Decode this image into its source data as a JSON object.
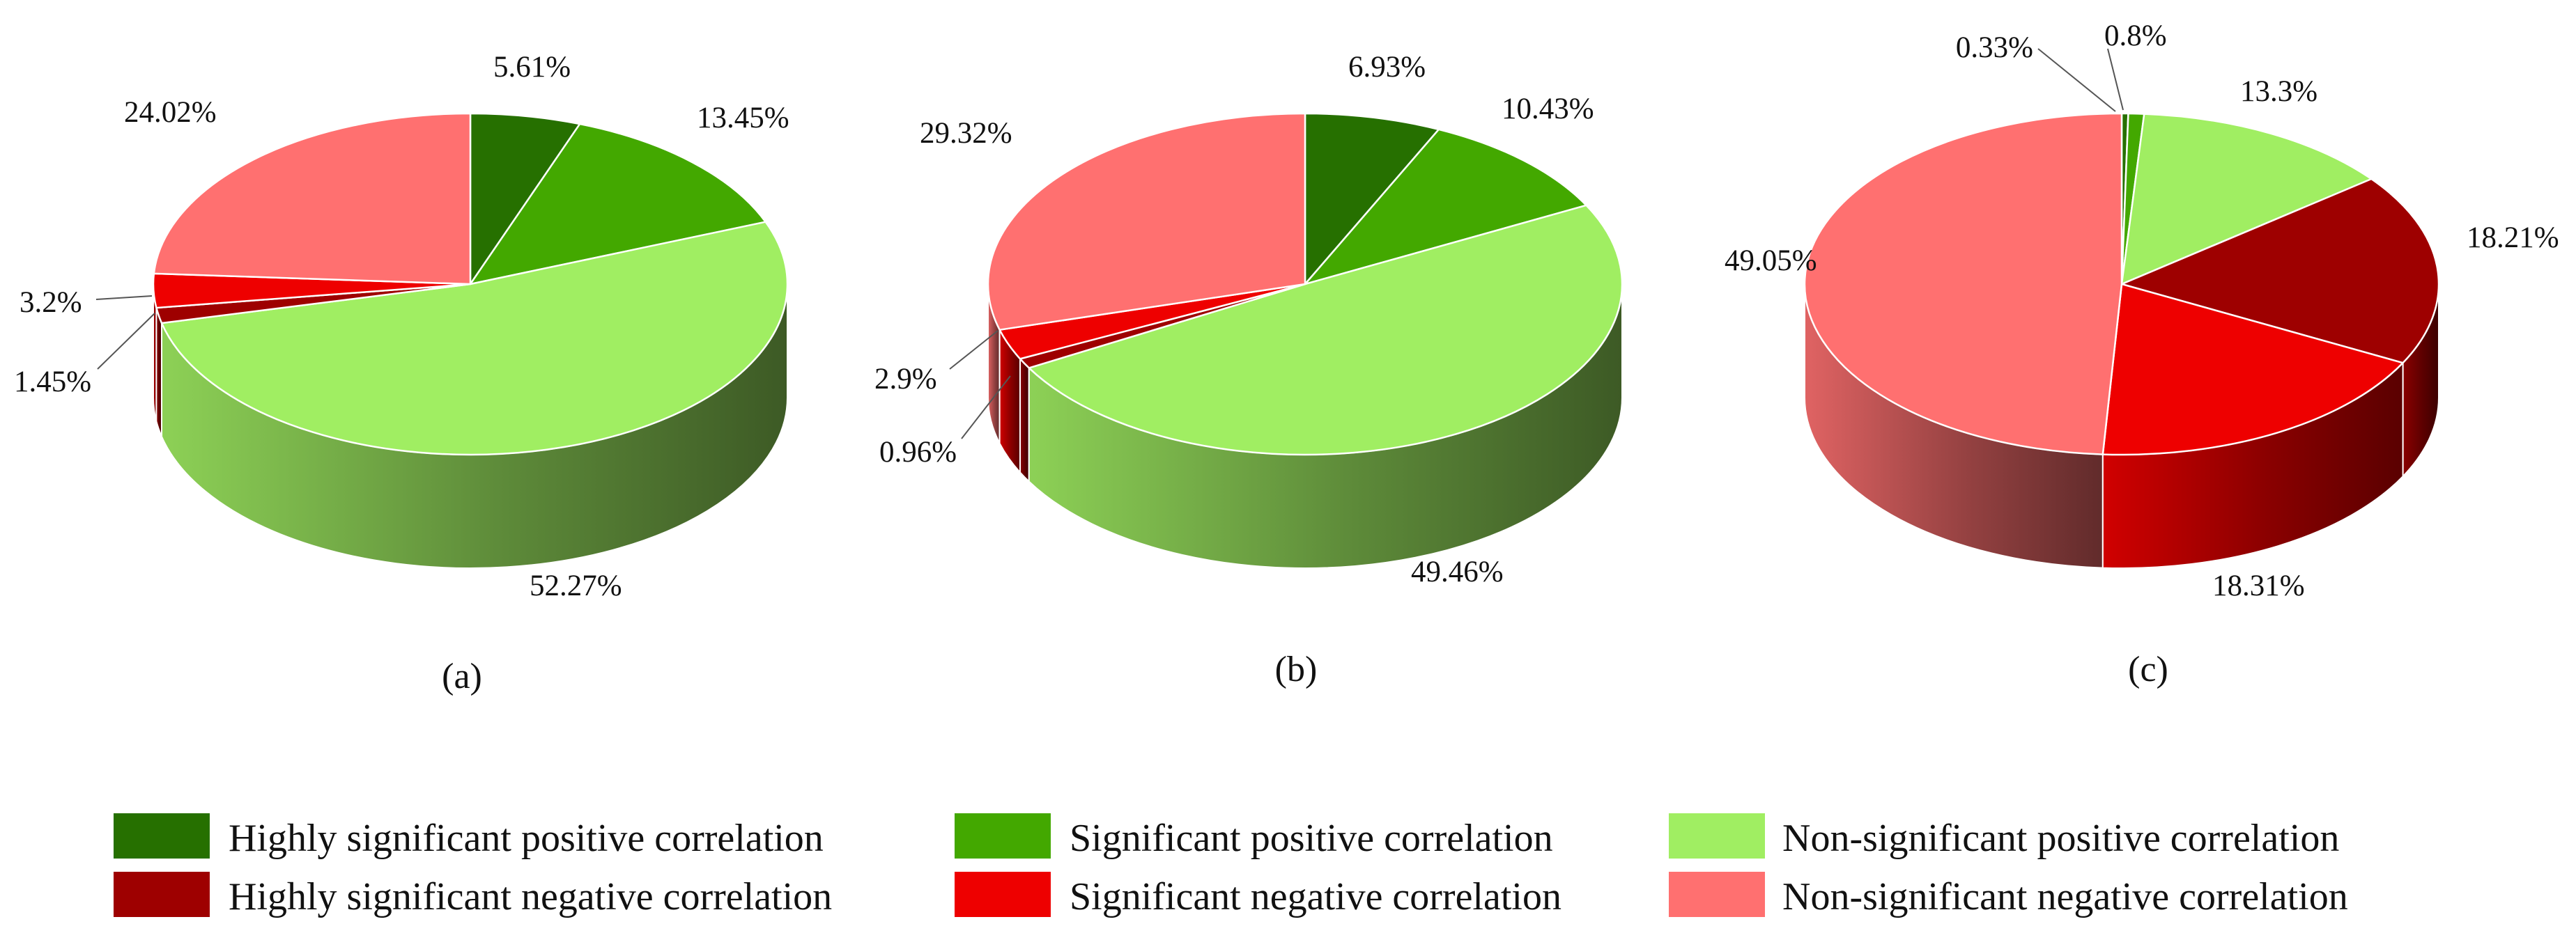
{
  "chart_data": [
    {
      "type": "pie",
      "style": "3d",
      "caption": "(a)",
      "categories": [
        "Highly significant positive correlation",
        "Significant positive correlation",
        "Non-significant positive correlation",
        "Highly significant negative correlation",
        "Significant negative correlation",
        "Non-significant negative correlation"
      ],
      "values": [
        5.61,
        13.45,
        52.27,
        1.45,
        3.2,
        24.02
      ],
      "labels": [
        "5.61%",
        "13.45%",
        "52.27%",
        "1.45%",
        "3.2%",
        "24.02%"
      ]
    },
    {
      "type": "pie",
      "style": "3d",
      "caption": "(b)",
      "categories": [
        "Highly significant positive correlation",
        "Significant positive correlation",
        "Non-significant positive correlation",
        "Highly significant negative correlation",
        "Significant negative correlation",
        "Non-significant negative correlation"
      ],
      "values": [
        6.93,
        10.43,
        49.46,
        0.96,
        2.9,
        29.32
      ],
      "labels": [
        "6.93%",
        "10.43%",
        "49.46%",
        "0.96%",
        "2.9%",
        "29.32%"
      ]
    },
    {
      "type": "pie",
      "style": "3d",
      "caption": "(c)",
      "categories": [
        "Highly significant positive correlation",
        "Significant positive correlation",
        "Non-significant positive correlation",
        "Highly significant negative correlation",
        "Significant negative correlation",
        "Non-significant negative correlation"
      ],
      "values": [
        0.33,
        0.8,
        13.3,
        18.21,
        18.31,
        49.05
      ],
      "labels": [
        "0.33%",
        "0.8%",
        "13.3%",
        "18.21%",
        "18.31%",
        "49.05%"
      ]
    }
  ],
  "legend": {
    "placement": "bottom",
    "items": [
      {
        "label": "Highly significant positive correlation",
        "color": "#267000"
      },
      {
        "label": "Significant positive correlation",
        "color": "#43A800"
      },
      {
        "label": "Non-significant positive correlation",
        "color": "#A0EE62"
      },
      {
        "label": "Highly significant negative correlation",
        "color": "#9E0000"
      },
      {
        "label": "Significant negative correlation",
        "color": "#EE0000"
      },
      {
        "label": "Non-significant negative correlation",
        "color": "#FF7070"
      }
    ]
  },
  "slice_colors": [
    "#267000",
    "#43A800",
    "#A0EE62",
    "#9E0000",
    "#EE0000",
    "#FF7070"
  ]
}
